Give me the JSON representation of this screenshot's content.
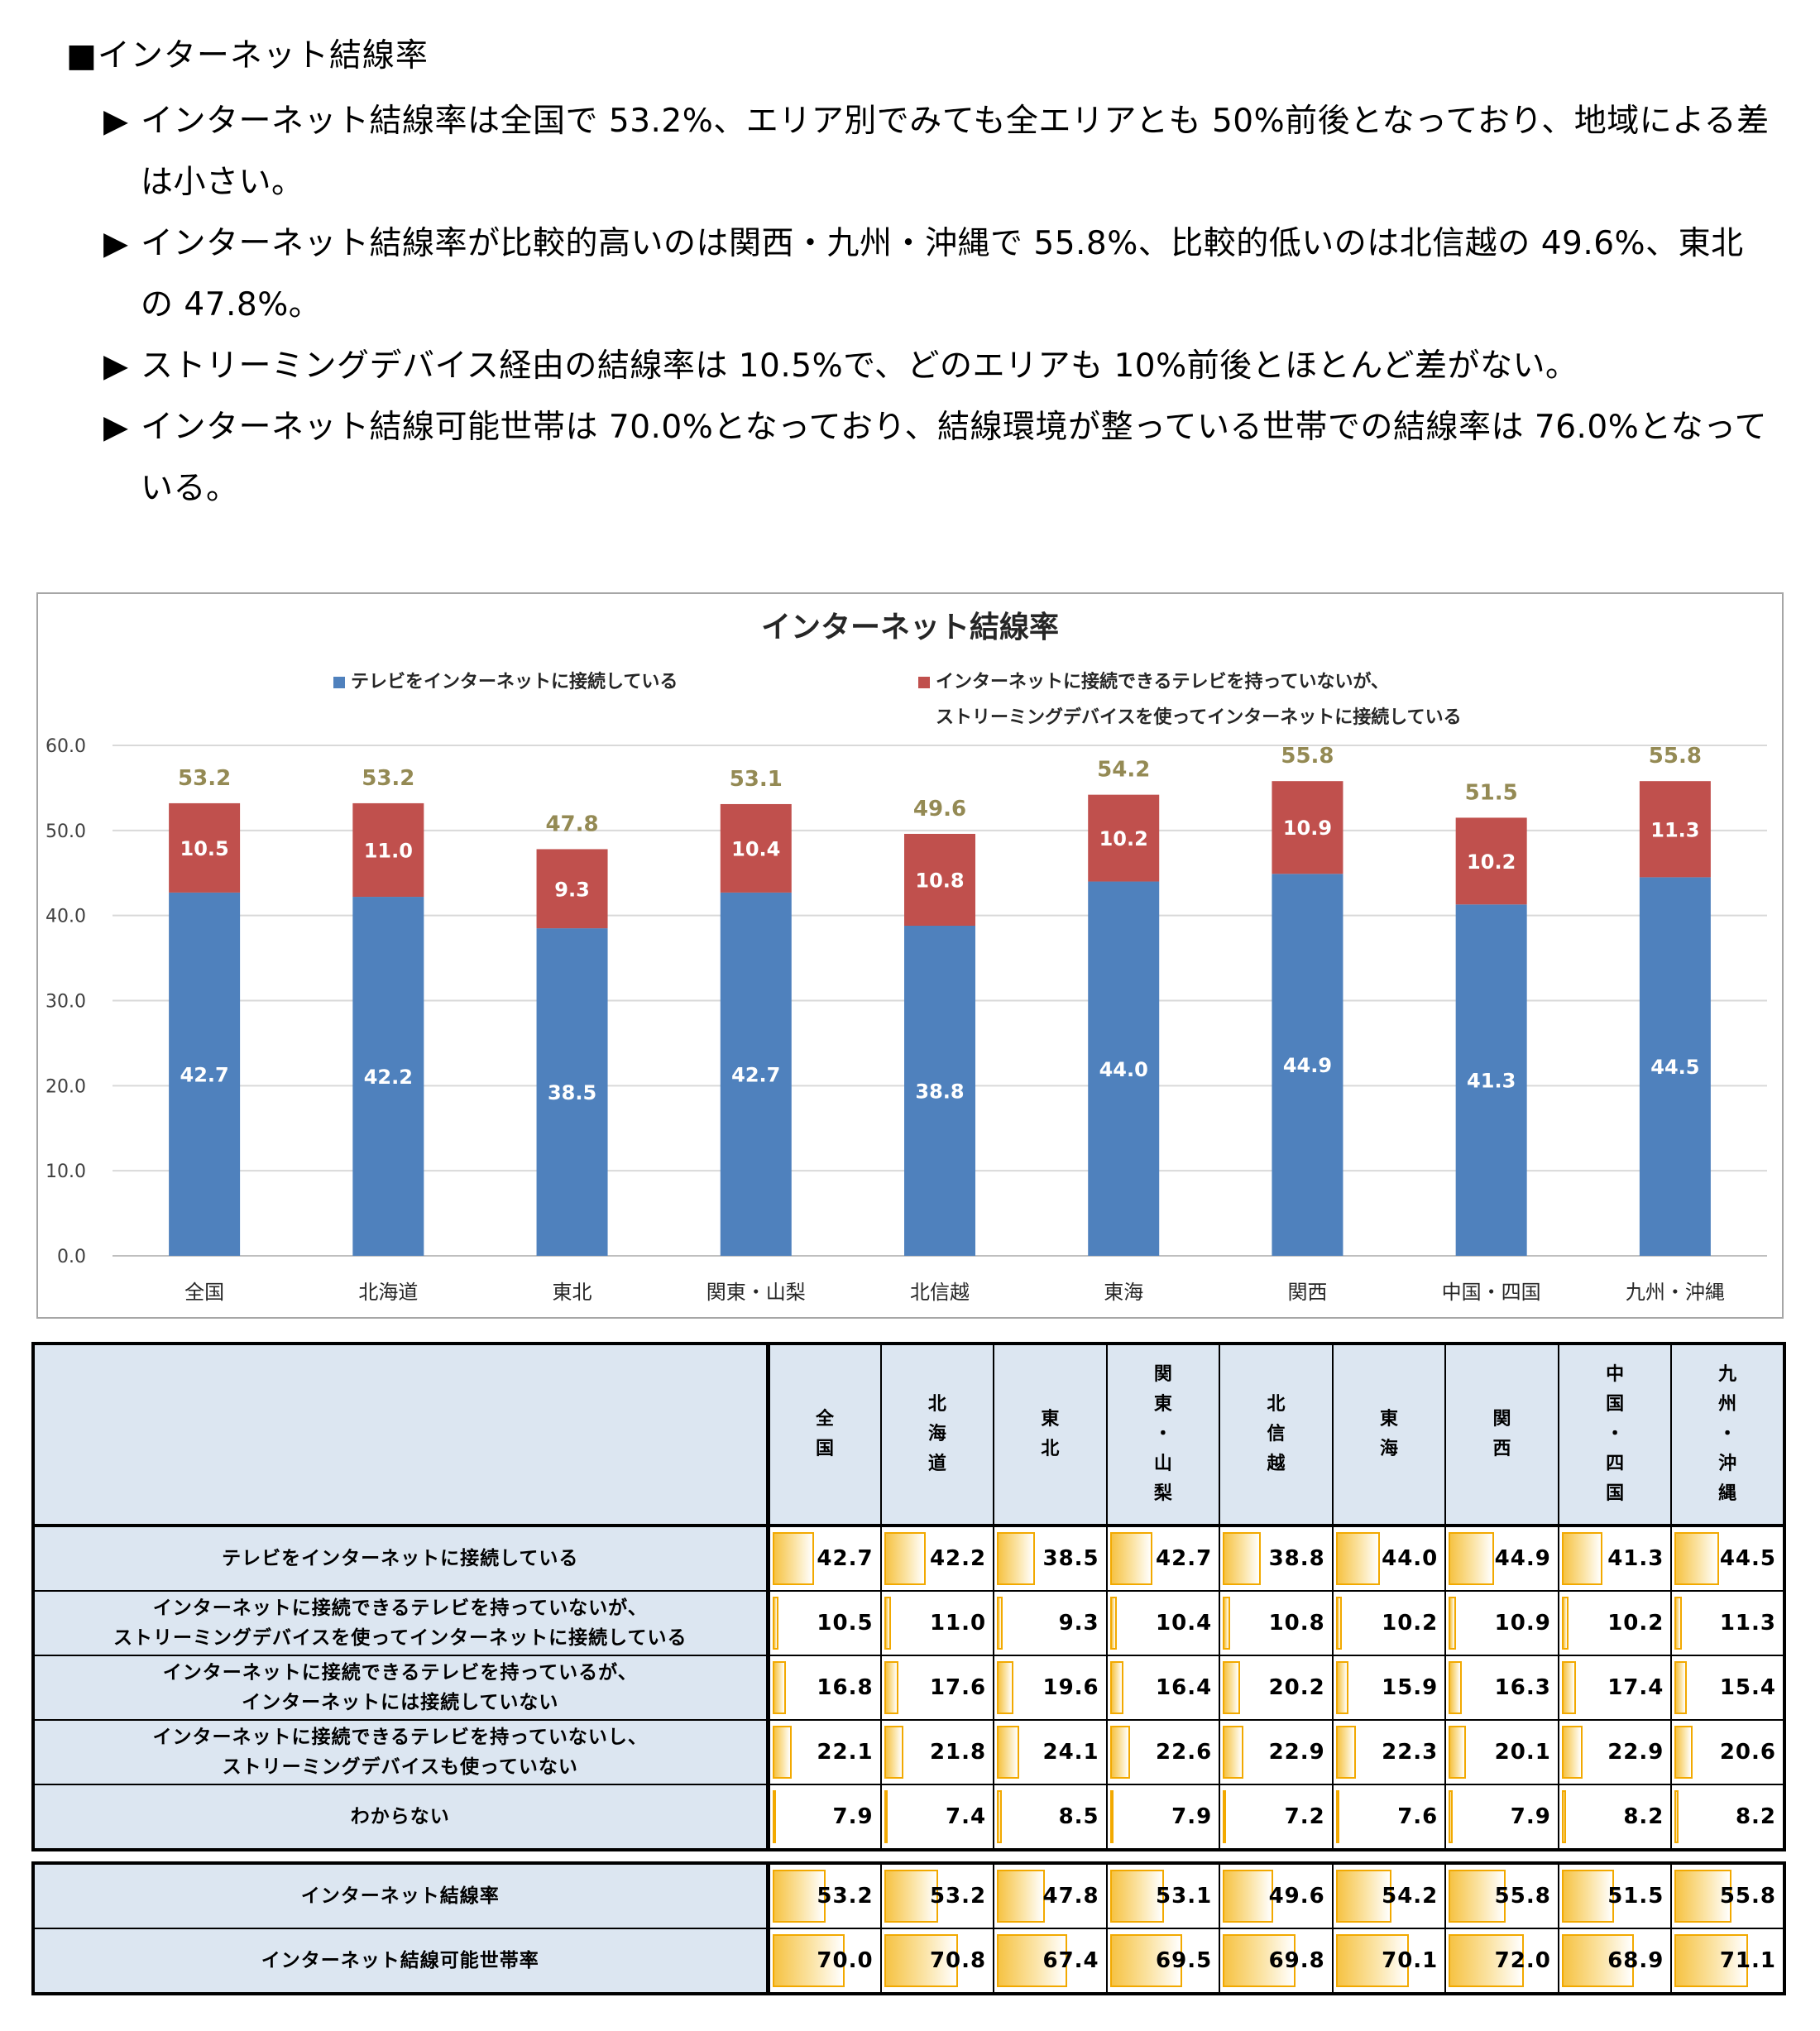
{
  "intro": {
    "heading": "■インターネット結線率",
    "bullet_marker": "▶",
    "bullets": [
      "インターネット結線率は全国で 53.2%、エリア別でみても全エリアとも 50%前後となっており、地域による差は小さい。",
      "インターネット結線率が比較的高いのは関西・九州・沖縄で 55.8%、比較的低いのは北信越の 49.6%、東北の 47.8%。",
      "ストリーミングデバイス経由の結線率は 10.5%で、どのエリアも 10%前後とほとんど差がない。",
      "インターネット結線可能世帯は 70.0%となっており、結線環境が整っている世帯での結線率は 76.0%となっている。"
    ]
  },
  "chart_data": {
    "type": "bar",
    "stacked": true,
    "title": "インターネット結線率",
    "categories": [
      "全国",
      "北海道",
      "東北",
      "関東・山梨",
      "北信越",
      "東海",
      "関西",
      "中国・四国",
      "九州・沖縄"
    ],
    "series": [
      {
        "name": "テレビをインターネットに接続している",
        "color": "#4f81bd",
        "values": [
          42.7,
          42.2,
          38.5,
          42.7,
          38.8,
          44.0,
          44.9,
          41.3,
          44.5
        ]
      },
      {
        "name": "インターネットに接続できるテレビを持っていないが、ストリーミングデバイスを使ってインターネットに接続している",
        "color": "#c0504d",
        "values": [
          10.5,
          11.0,
          9.3,
          10.4,
          10.8,
          10.2,
          10.9,
          10.2,
          11.3
        ]
      }
    ],
    "legend_lines": [
      "テレビをインターネットに接続している",
      "インターネットに接続できるテレビを持っていないが、",
      "ストリーミングデバイスを使ってインターネットに接続している"
    ],
    "totals": [
      53.2,
      53.2,
      47.8,
      53.1,
      49.6,
      54.2,
      55.8,
      51.5,
      55.8
    ],
    "total_label_color": "#948a54",
    "ylim": [
      0,
      60
    ],
    "yticks": [
      "60.0",
      "50.0",
      "40.0",
      "30.0",
      "20.0",
      "10.0",
      "0.0"
    ],
    "ytick_values": [
      60,
      50,
      40,
      30,
      20,
      10,
      0
    ],
    "grid": true,
    "legend_position": "top"
  },
  "table": {
    "columns": [
      [
        "全",
        "国"
      ],
      [
        "北",
        "海",
        "道"
      ],
      [
        "東",
        "北"
      ],
      [
        "関",
        "東",
        "・",
        "山",
        "梨"
      ],
      [
        "北",
        "信",
        "越"
      ],
      [
        "東",
        "海"
      ],
      [
        "関",
        "西"
      ],
      [
        "中",
        "国",
        "・",
        "四",
        "国"
      ],
      [
        "九",
        "州",
        "・",
        "沖",
        "縄"
      ]
    ],
    "rows": [
      {
        "label": [
          "テレビをインターネットに接続している"
        ],
        "values": [
          "42.7",
          "42.2",
          "38.5",
          "42.7",
          "38.8",
          "44.0",
          "44.9",
          "41.3",
          "44.5"
        ]
      },
      {
        "label": [
          "インターネットに接続できるテレビを持っていないが、",
          "ストリーミングデバイスを使ってインターネットに接続している"
        ],
        "values": [
          "10.5",
          "11.0",
          "9.3",
          "10.4",
          "10.8",
          "10.2",
          "10.9",
          "10.2",
          "11.3"
        ]
      },
      {
        "label": [
          "インターネットに接続できるテレビを持っているが、",
          "インターネットには接続していない"
        ],
        "values": [
          "16.8",
          "17.6",
          "19.6",
          "16.4",
          "20.2",
          "15.9",
          "16.3",
          "17.4",
          "15.4"
        ]
      },
      {
        "label": [
          "インターネットに接続できるテレビを持っていないし、",
          "ストリーミングデバイスも使っていない"
        ],
        "values": [
          "22.1",
          "21.8",
          "24.1",
          "22.6",
          "22.9",
          "22.3",
          "20.1",
          "22.9",
          "20.6"
        ]
      },
      {
        "label": [
          "わからない"
        ],
        "values": [
          "7.9",
          "7.4",
          "8.5",
          "7.9",
          "7.2",
          "7.6",
          "7.9",
          "8.2",
          "8.2"
        ]
      }
    ],
    "summary_rows": [
      {
        "label": [
          "インターネット結線率"
        ],
        "values": [
          "53.2",
          "53.2",
          "47.8",
          "53.1",
          "49.6",
          "54.2",
          "55.8",
          "51.5",
          "55.8"
        ]
      },
      {
        "label": [
          "インターネット結線可能世帯率"
        ],
        "values": [
          "70.0",
          "70.8",
          "67.4",
          "69.5",
          "69.8",
          "70.1",
          "72.0",
          "68.9",
          "71.1"
        ]
      }
    ],
    "bar_max": 100
  }
}
